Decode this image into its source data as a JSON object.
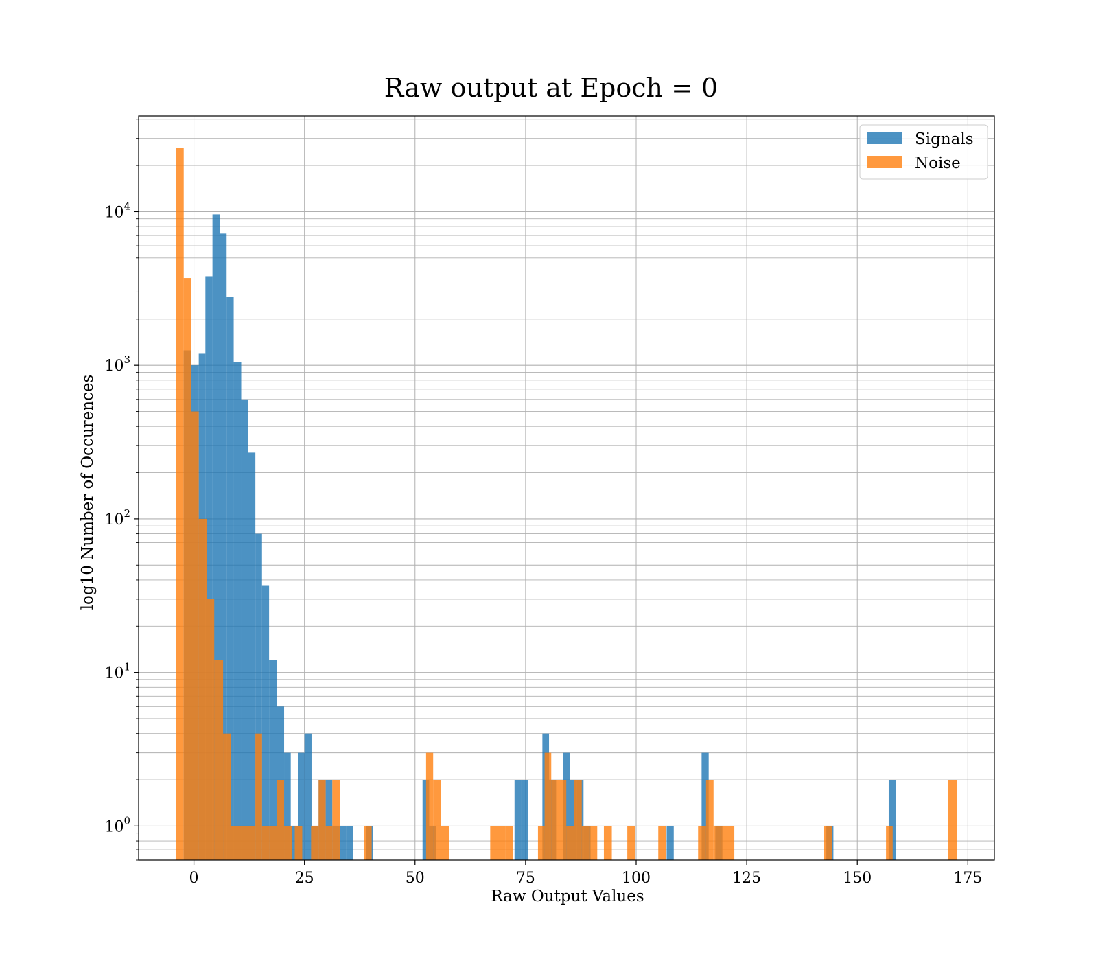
{
  "chart_data": {
    "type": "bar",
    "title": "Raw output at Epoch = 0",
    "xlabel": "Raw Output Values",
    "ylabel": "log10 Number of Occurences",
    "xlim": [
      -12.5,
      181
    ],
    "ylim": [
      0.6,
      42000
    ],
    "yscale": "log",
    "grid": true,
    "legend_position": "top-right",
    "x_ticks": [
      0,
      25,
      50,
      75,
      100,
      125,
      150,
      175
    ],
    "y_ticks": [
      {
        "value": 1,
        "label": "10",
        "exp": "0"
      },
      {
        "value": 10,
        "label": "10",
        "exp": "1"
      },
      {
        "value": 100,
        "label": "10",
        "exp": "2"
      },
      {
        "value": 1000,
        "label": "10",
        "exp": "3"
      },
      {
        "value": 10000,
        "label": "10",
        "exp": "4"
      }
    ],
    "series": [
      {
        "name": "Signals",
        "color": "#1f77b4",
        "opacity": 0.8,
        "bins": [
          [
            -2.3,
            -0.6,
            1250
          ],
          [
            -0.6,
            1.1,
            1000
          ],
          [
            1.1,
            2.6,
            1200
          ],
          [
            2.6,
            4.2,
            3800
          ],
          [
            4.2,
            5.9,
            9600
          ],
          [
            5.9,
            7.4,
            7200
          ],
          [
            7.4,
            9.0,
            2800
          ],
          [
            9.0,
            10.7,
            1050
          ],
          [
            10.7,
            12.3,
            600
          ],
          [
            12.3,
            13.9,
            270
          ],
          [
            13.9,
            15.4,
            80
          ],
          [
            15.4,
            17.0,
            37
          ],
          [
            17.0,
            18.8,
            12
          ],
          [
            18.8,
            20.4,
            6
          ],
          [
            20.4,
            21.9,
            3
          ],
          [
            21.9,
            23.5,
            1
          ],
          [
            23.5,
            25.0,
            3
          ],
          [
            25.0,
            26.6,
            4
          ],
          [
            26.6,
            28.2,
            1
          ],
          [
            28.2,
            29.8,
            2
          ],
          [
            29.8,
            31.3,
            2
          ],
          [
            31.3,
            32.9,
            1
          ],
          [
            32.9,
            34.5,
            1
          ],
          [
            34.5,
            36.0,
            1
          ],
          [
            39.0,
            40.5,
            1
          ],
          [
            51.7,
            53.2,
            2
          ],
          [
            53.2,
            54.8,
            1
          ],
          [
            72.5,
            74.0,
            2
          ],
          [
            74.0,
            75.6,
            2
          ],
          [
            78.8,
            80.3,
            4
          ],
          [
            80.3,
            81.9,
            2
          ],
          [
            83.4,
            85.0,
            3
          ],
          [
            85.0,
            86.6,
            2
          ],
          [
            86.6,
            88.1,
            2
          ],
          [
            88.1,
            89.7,
            1
          ],
          [
            106.9,
            108.5,
            1
          ],
          [
            114.8,
            116.4,
            3
          ],
          [
            117.9,
            119.5,
            1
          ],
          [
            143.0,
            144.6,
            1
          ],
          [
            157.1,
            158.7,
            2
          ]
        ]
      },
      {
        "name": "Noise",
        "color": "#ff7f0e",
        "opacity": 0.8,
        "bins": [
          [
            -4.1,
            -2.3,
            26000
          ],
          [
            -2.3,
            -0.6,
            3700
          ],
          [
            -0.6,
            1.1,
            500
          ],
          [
            1.1,
            2.9,
            100
          ],
          [
            2.9,
            4.6,
            30
          ],
          [
            4.6,
            6.6,
            12
          ],
          [
            6.6,
            8.3,
            4
          ],
          [
            8.3,
            10.0,
            1
          ],
          [
            10.0,
            11.8,
            1
          ],
          [
            11.8,
            13.9,
            1
          ],
          [
            13.9,
            15.4,
            4
          ],
          [
            15.4,
            17.0,
            1
          ],
          [
            17.0,
            18.8,
            1
          ],
          [
            18.8,
            20.4,
            2
          ],
          [
            20.4,
            22.2,
            1
          ],
          [
            22.8,
            24.5,
            1
          ],
          [
            26.5,
            28.2,
            1
          ],
          [
            28.2,
            29.8,
            2
          ],
          [
            29.8,
            31.3,
            1
          ],
          [
            31.3,
            33.0,
            2
          ],
          [
            38.5,
            40.2,
            1
          ],
          [
            52.5,
            54.1,
            3
          ],
          [
            54.1,
            55.9,
            2
          ],
          [
            55.9,
            57.7,
            1
          ],
          [
            67.0,
            68.8,
            1
          ],
          [
            68.8,
            70.5,
            1
          ],
          [
            70.5,
            72.2,
            1
          ],
          [
            77.8,
            79.3,
            1
          ],
          [
            79.3,
            80.8,
            3
          ],
          [
            80.8,
            82.5,
            2
          ],
          [
            82.5,
            84.2,
            2
          ],
          [
            84.2,
            86.0,
            1
          ],
          [
            86.0,
            87.7,
            2
          ],
          [
            87.7,
            89.5,
            1
          ],
          [
            89.5,
            91.2,
            1
          ],
          [
            92.7,
            94.5,
            1
          ],
          [
            98.0,
            99.8,
            1
          ],
          [
            105.0,
            106.8,
            1
          ],
          [
            114.0,
            115.8,
            1
          ],
          [
            115.8,
            117.5,
            2
          ],
          [
            117.5,
            119.0,
            1
          ],
          [
            119.0,
            122.2,
            1
          ],
          [
            142.5,
            144.3,
            1
          ],
          [
            156.5,
            158.0,
            1
          ],
          [
            170.5,
            172.5,
            2
          ]
        ]
      }
    ]
  }
}
